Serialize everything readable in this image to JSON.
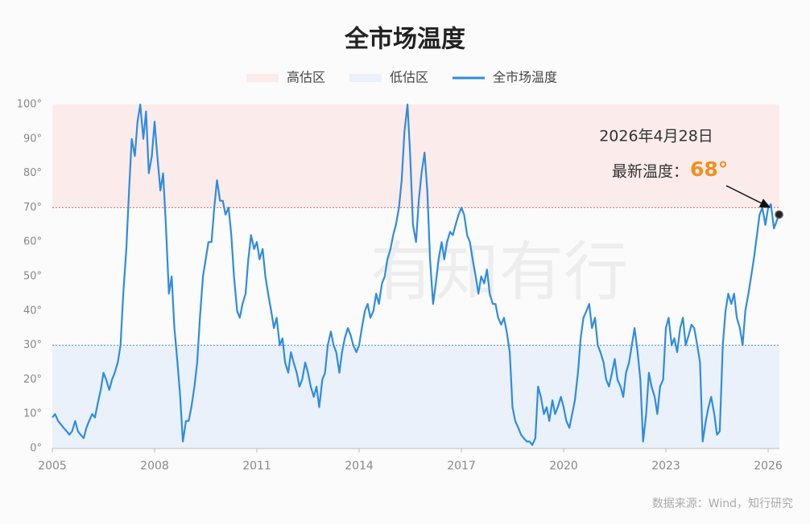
{
  "chart_data": {
    "type": "line",
    "title": "全市场温度",
    "bands": [
      {
        "name": "高估区",
        "range": [
          70,
          100
        ],
        "color": "#fbeceb",
        "line": "#e06666"
      },
      {
        "name": "低估区",
        "range": [
          0,
          30
        ],
        "color": "#eaf1fb",
        "line": "#4a86d6"
      }
    ],
    "series": [
      {
        "name": "全市场温度",
        "color": "#2f8ce0",
        "x": [
          2005.0,
          2005.08,
          2005.17,
          2005.25,
          2005.33,
          2005.42,
          2005.5,
          2005.58,
          2005.67,
          2005.75,
          2005.83,
          2005.92,
          2006.0,
          2006.08,
          2006.17,
          2006.25,
          2006.33,
          2006.42,
          2006.5,
          2006.58,
          2006.67,
          2006.75,
          2006.83,
          2006.92,
          2007.0,
          2007.08,
          2007.17,
          2007.25,
          2007.33,
          2007.42,
          2007.5,
          2007.58,
          2007.67,
          2007.75,
          2007.83,
          2007.92,
          2008.0,
          2008.08,
          2008.17,
          2008.25,
          2008.33,
          2008.42,
          2008.5,
          2008.58,
          2008.67,
          2008.75,
          2008.83,
          2008.92,
          2009.0,
          2009.08,
          2009.17,
          2009.25,
          2009.33,
          2009.42,
          2009.5,
          2009.58,
          2009.67,
          2009.75,
          2009.83,
          2009.92,
          2010.0,
          2010.08,
          2010.17,
          2010.25,
          2010.33,
          2010.42,
          2010.5,
          2010.58,
          2010.67,
          2010.75,
          2010.83,
          2010.92,
          2011.0,
          2011.08,
          2011.17,
          2011.25,
          2011.33,
          2011.42,
          2011.5,
          2011.58,
          2011.67,
          2011.75,
          2011.83,
          2011.92,
          2012.0,
          2012.08,
          2012.17,
          2012.25,
          2012.33,
          2012.42,
          2012.5,
          2012.58,
          2012.67,
          2012.75,
          2012.83,
          2012.92,
          2013.0,
          2013.08,
          2013.17,
          2013.25,
          2013.33,
          2013.42,
          2013.5,
          2013.58,
          2013.67,
          2013.75,
          2013.83,
          2013.92,
          2014.0,
          2014.08,
          2014.17,
          2014.25,
          2014.33,
          2014.42,
          2014.5,
          2014.58,
          2014.67,
          2014.75,
          2014.83,
          2014.92,
          2015.0,
          2015.08,
          2015.17,
          2015.25,
          2015.33,
          2015.42,
          2015.5,
          2015.58,
          2015.67,
          2015.75,
          2015.83,
          2015.92,
          2016.0,
          2016.08,
          2016.17,
          2016.25,
          2016.33,
          2016.42,
          2016.5,
          2016.58,
          2016.67,
          2016.75,
          2016.83,
          2016.92,
          2017.0,
          2017.08,
          2017.17,
          2017.25,
          2017.33,
          2017.42,
          2017.5,
          2017.58,
          2017.67,
          2017.75,
          2017.83,
          2017.92,
          2018.0,
          2018.08,
          2018.17,
          2018.25,
          2018.33,
          2018.42,
          2018.5,
          2018.58,
          2018.67,
          2018.75,
          2018.83,
          2018.92,
          2019.0,
          2019.08,
          2019.17,
          2019.25,
          2019.33,
          2019.42,
          2019.5,
          2019.58,
          2019.67,
          2019.75,
          2019.83,
          2019.92,
          2020.0,
          2020.08,
          2020.17,
          2020.25,
          2020.33,
          2020.42,
          2020.5,
          2020.58,
          2020.67,
          2020.75,
          2020.83,
          2020.92,
          2021.0,
          2021.08,
          2021.17,
          2021.25,
          2021.33,
          2021.42,
          2021.5,
          2021.58,
          2021.67,
          2021.75,
          2021.83,
          2021.92,
          2022.0,
          2022.08,
          2022.17,
          2022.25,
          2022.33,
          2022.42,
          2022.5,
          2022.58,
          2022.67,
          2022.75,
          2022.83,
          2022.92,
          2023.0,
          2023.08,
          2023.17,
          2023.25,
          2023.33,
          2023.42,
          2023.5,
          2023.58,
          2023.67,
          2023.75,
          2023.83,
          2023.92,
          2024.0,
          2024.08,
          2024.17,
          2024.25,
          2024.33,
          2024.42,
          2024.5,
          2024.58,
          2024.67,
          2024.75,
          2024.83,
          2024.92,
          2025.0,
          2025.08,
          2025.17,
          2025.25,
          2025.33,
          2025.42,
          2025.5,
          2025.58,
          2025.67,
          2025.75,
          2025.83,
          2025.92,
          2026.0,
          2026.08,
          2026.17,
          2026.32
        ],
        "values": [
          9,
          10,
          8,
          7,
          6,
          5,
          4,
          5,
          8,
          5,
          4,
          3,
          6,
          8,
          10,
          9,
          13,
          17,
          22,
          20,
          17,
          20,
          22,
          25,
          30,
          45,
          58,
          75,
          90,
          85,
          95,
          100,
          90,
          98,
          80,
          85,
          95,
          85,
          75,
          80,
          65,
          45,
          50,
          35,
          25,
          15,
          2,
          8,
          8,
          12,
          18,
          25,
          38,
          50,
          55,
          60,
          60,
          70,
          78,
          72,
          72,
          68,
          70,
          62,
          50,
          40,
          38,
          42,
          45,
          55,
          62,
          58,
          60,
          55,
          58,
          50,
          45,
          40,
          35,
          38,
          30,
          32,
          25,
          22,
          28,
          25,
          22,
          18,
          20,
          25,
          22,
          18,
          15,
          18,
          12,
          20,
          22,
          30,
          34,
          30,
          28,
          22,
          28,
          32,
          35,
          33,
          30,
          28,
          30,
          35,
          40,
          42,
          38,
          40,
          45,
          42,
          48,
          50,
          55,
          58,
          62,
          65,
          70,
          78,
          92,
          100,
          85,
          65,
          60,
          72,
          80,
          86,
          75,
          55,
          42,
          48,
          55,
          60,
          55,
          60,
          63,
          62,
          65,
          68,
          70,
          68,
          62,
          60,
          55,
          50,
          45,
          50,
          48,
          52,
          45,
          42,
          42,
          38,
          36,
          38,
          34,
          28,
          12,
          8,
          6,
          4,
          3,
          2,
          2,
          1,
          3,
          18,
          15,
          10,
          12,
          8,
          14,
          10,
          12,
          15,
          12,
          8,
          6,
          10,
          14,
          22,
          32,
          38,
          40,
          42,
          35,
          38,
          30,
          28,
          25,
          20,
          18,
          22,
          26,
          20,
          18,
          15,
          22,
          25,
          30,
          35,
          28,
          20,
          2,
          10,
          22,
          18,
          15,
          10,
          18,
          20,
          35,
          38,
          30,
          32,
          28,
          35,
          38,
          30,
          33,
          36,
          35,
          30,
          25,
          2,
          8,
          12,
          15,
          10,
          4,
          5,
          30,
          40,
          45,
          42,
          45,
          38,
          35,
          30,
          40,
          45,
          50,
          55,
          62,
          68,
          70,
          65,
          70,
          71,
          64,
          68
        ]
      }
    ],
    "xlim": [
      2005,
      2026.33
    ],
    "xticks": [
      2005,
      2008,
      2011,
      2014,
      2017,
      2020,
      2023,
      2026
    ],
    "ylim": [
      0,
      100
    ],
    "yticks": [
      {
        "value": 0,
        "label": "0°"
      },
      {
        "value": 10,
        "label": "10°"
      },
      {
        "value": 20,
        "label": "20°"
      },
      {
        "value": 30,
        "label": "30°"
      },
      {
        "value": 40,
        "label": "40°"
      },
      {
        "value": 50,
        "label": "50°"
      },
      {
        "value": 60,
        "label": "60°"
      },
      {
        "value": 70,
        "label": "70°"
      },
      {
        "value": 80,
        "label": "80°"
      },
      {
        "value": 90,
        "label": "90°"
      },
      {
        "value": 100,
        "label": "100°"
      }
    ],
    "legend": "top",
    "annotation": {
      "date": "2026年4月28日",
      "prefix": "最新温度：",
      "value_label": "68°"
    },
    "watermark": "有知有行",
    "source": "数据来源：Wind，知行研究"
  }
}
